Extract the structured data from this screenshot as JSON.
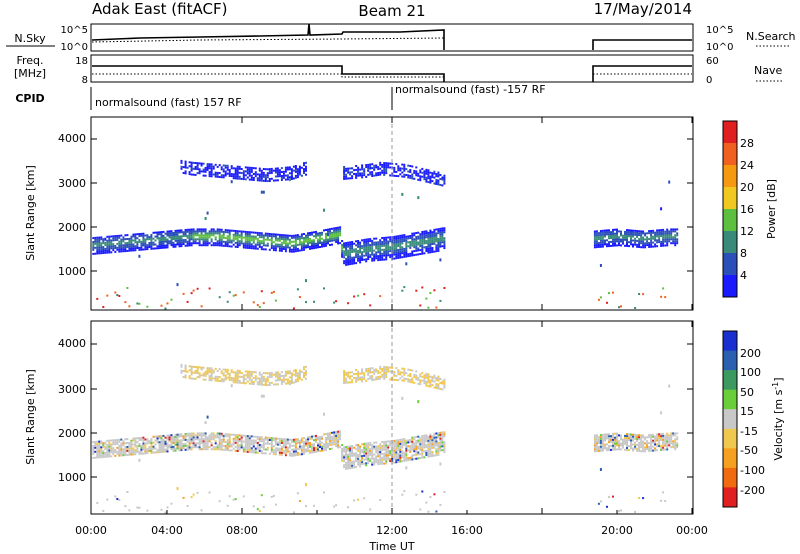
{
  "header": {
    "station": "Adak East (fitACF)",
    "beam": "Beam 21",
    "date": "17/May/2014"
  },
  "params": {
    "nsky_label": "N.Sky",
    "nsearch_label": "N.Search",
    "freq_label": "Freq.",
    "freq_unit": "[MHz]",
    "nave_label": "Nave",
    "cpid_label": "CPID",
    "nsky_ticks_left": [
      "10^5",
      "10^0"
    ],
    "nsky_ticks_right": [
      "10^5",
      "10^0"
    ],
    "freq_ticks_left": [
      "18",
      "8"
    ],
    "nave_ticks_right": [
      "60",
      "0"
    ],
    "cpid_entries": [
      {
        "text": "normalsound (fast) 157 RF",
        "start_hour": 0
      },
      {
        "text": "normalsound (fast) -157 RF",
        "start_hour": 12
      }
    ]
  },
  "axes": {
    "xlabel": "Time UT",
    "ylabel": "Slant Range [km]",
    "x_ticks": [
      "00:00",
      "04:00",
      "08:00",
      "12:00",
      "16:00",
      "20:00",
      "00:00"
    ],
    "y_ticks": [
      "1000",
      "2000",
      "3000",
      "4000"
    ]
  },
  "colorbars": {
    "power": {
      "label": "Power [dB]",
      "ticks": [
        "4",
        "8",
        "12",
        "16",
        "20",
        "24",
        "28"
      ]
    },
    "velocity": {
      "label": "Velocity [m s",
      "label_sup": "-1",
      "label_end": "]",
      "ticks": [
        "200",
        "100",
        "50",
        "15",
        "-15",
        "-50",
        "-100",
        "-200"
      ]
    }
  },
  "colors": {
    "power_scale": [
      "#1a1aff",
      "#2b4fb8",
      "#3a8a7a",
      "#5cbf40",
      "#f0c820",
      "#f59a10",
      "#f06020",
      "#e02020"
    ],
    "velocity_scale": [
      "#1a2fd0",
      "#2b5fb0",
      "#3c9a60",
      "#6acd3a",
      "#c8c8c8",
      "#f0c850",
      "#f5a020",
      "#f06a10",
      "#e02020"
    ]
  },
  "chart_data": [
    {
      "type": "heatmap",
      "title": "Power",
      "xlabel": "Time UT",
      "ylabel": "Slant Range [km]",
      "xlim": [
        0,
        24
      ],
      "ylim": [
        200,
        4600
      ],
      "colorbar": {
        "label": "Power [dB]",
        "range": [
          0,
          32
        ]
      },
      "data_gaps_hours": [
        [
          14.1,
          20.0
        ]
      ],
      "bands": [
        {
          "name": "main_echo",
          "x": [
            0,
            1,
            2,
            3,
            4,
            5,
            6,
            7,
            8,
            9,
            9.9,
            10,
            11,
            12,
            13,
            14,
            20,
            21,
            22,
            23,
            23.3
          ],
          "y": [
            1700,
            1750,
            1800,
            1850,
            1900,
            1900,
            1850,
            1800,
            1750,
            1850,
            1950,
            1500,
            1600,
            1650,
            1750,
            1850,
            1850,
            1900,
            1850,
            1900,
            1900
          ]
        },
        {
          "name": "upper_echo",
          "x": [
            3.5,
            4,
            5,
            6,
            7,
            8,
            8.5,
            10,
            11,
            11.5,
            12.5,
            14
          ],
          "y": [
            3500,
            3450,
            3400,
            3350,
            3300,
            3350,
            3450,
            3350,
            3400,
            3450,
            3400,
            3200
          ]
        }
      ],
      "typical_power_db": {
        "main_echo_edges": 4,
        "main_echo_core": 16,
        "upper_echo": 6,
        "near_range": 26
      }
    },
    {
      "type": "heatmap",
      "title": "Velocity",
      "xlabel": "Time UT",
      "ylabel": "Slant Range [km]",
      "xlim": [
        0,
        24
      ],
      "ylim": [
        200,
        4600
      ],
      "colorbar": {
        "label": "Velocity [m s-1]",
        "ticks": [
          200,
          100,
          50,
          15,
          -15,
          -50,
          -100,
          -200
        ]
      },
      "data_gaps_hours": [
        [
          14.1,
          20.0
        ]
      ],
      "typical_velocity": {
        "main_echo": 0,
        "upper_echo": -30,
        "scatter": 60
      }
    },
    {
      "type": "line",
      "title": "N.Sky",
      "x": [
        0,
        2,
        4,
        6,
        8,
        8.7,
        10,
        12,
        14,
        14.01,
        20,
        22,
        24
      ],
      "y_log10": [
        2.8,
        3.0,
        3.1,
        3.3,
        3.4,
        5.0,
        3.5,
        3.6,
        3.8,
        0,
        2.5,
        2.4,
        2.5
      ]
    },
    {
      "type": "line",
      "title": "Freq. [MHz]",
      "x": [
        0,
        10,
        10.01,
        14,
        14.01,
        20,
        24
      ],
      "y": [
        13.5,
        13.5,
        11.5,
        11.5,
        0,
        13.5,
        13.5
      ],
      "ylim": [
        8,
        18
      ]
    }
  ]
}
